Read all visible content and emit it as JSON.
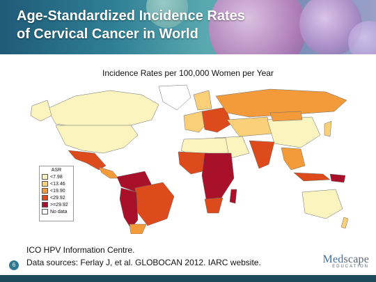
{
  "header": {
    "title_line1": "Age-Standardized Incidence Rates",
    "title_line2": "of Cervical Cancer in World"
  },
  "map": {
    "subtitle": "Incidence Rates per 100,000 Women per Year",
    "legend": {
      "title": "ASR",
      "items": [
        {
          "label": "<7.98",
          "color": "#fbf4bf"
        },
        {
          "label": "<13.46",
          "color": "#f9cf77"
        },
        {
          "label": "<19.90",
          "color": "#f39a3b"
        },
        {
          "label": "<29.92",
          "color": "#dd4b1c"
        },
        {
          "label": ">=29.92",
          "color": "#a9102a"
        },
        {
          "label": "No data",
          "color": "#ffffff"
        }
      ]
    }
  },
  "footer": {
    "source_line1": "ICO HPV Information Centre.",
    "source_line2": "Data sources: Ferlay J, et al. GLOBOCAN 2012. IARC website.",
    "page_number": "6",
    "logo_med": "Med",
    "logo_rest": "scape",
    "logo_sub": "EDUCATION"
  }
}
